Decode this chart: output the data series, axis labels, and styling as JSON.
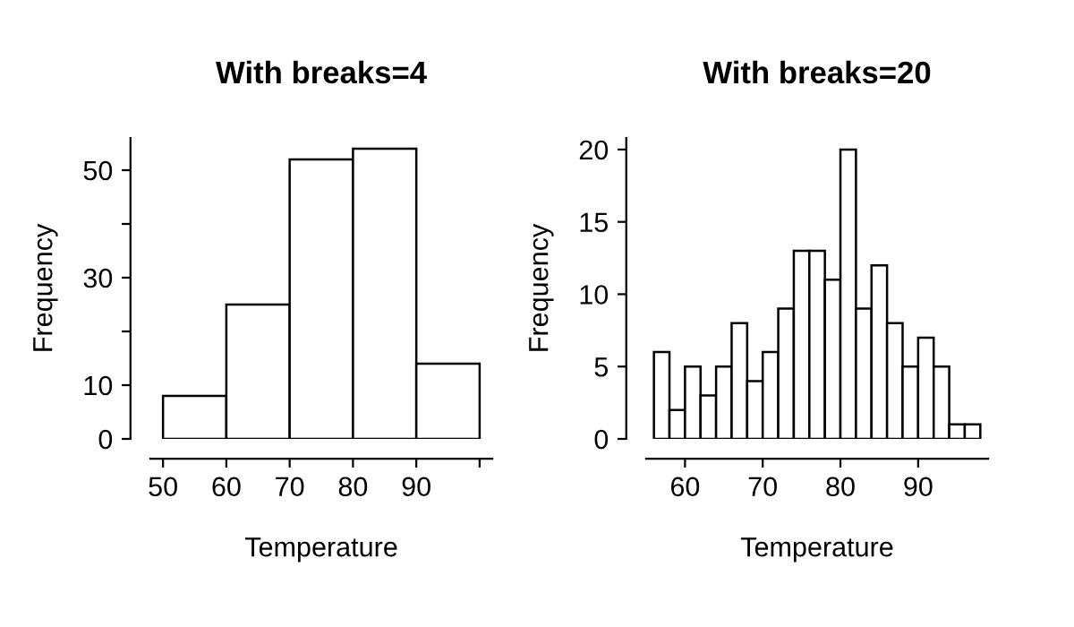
{
  "chart_data": [
    {
      "type": "histogram",
      "title": "With breaks=4",
      "xlabel": "Temperature",
      "ylabel": "Frequency",
      "color": "#ffffff",
      "bins": [
        50,
        60,
        70,
        80,
        90,
        100
      ],
      "values": [
        8,
        25,
        52,
        54,
        14
      ],
      "xlim": [
        48,
        102
      ],
      "ylim": [
        0,
        56
      ],
      "xticks": [
        50,
        60,
        70,
        80,
        90,
        {
          "value": 100,
          "label": null
        }
      ],
      "yticks": [
        0,
        10,
        {
          "value": 20,
          "label": null
        },
        30,
        {
          "value": 40,
          "label": null
        },
        50
      ]
    },
    {
      "type": "histogram",
      "title": "With breaks=20",
      "xlabel": "Temperature",
      "ylabel": "Frequency",
      "color": "#ffffff",
      "bins": [
        56,
        58,
        60,
        62,
        64,
        66,
        68,
        70,
        72,
        74,
        76,
        78,
        80,
        82,
        84,
        86,
        88,
        90,
        92,
        94,
        96,
        98
      ],
      "values": [
        6,
        2,
        5,
        3,
        5,
        8,
        4,
        6,
        9,
        13,
        13,
        11,
        20,
        9,
        12,
        8,
        5,
        7,
        5,
        1,
        1
      ],
      "xlim": [
        55,
        99
      ],
      "ylim": [
        0,
        20.8
      ],
      "xticks": [
        60,
        70,
        80,
        90
      ],
      "yticks": [
        0,
        5,
        10,
        15,
        20
      ]
    }
  ]
}
